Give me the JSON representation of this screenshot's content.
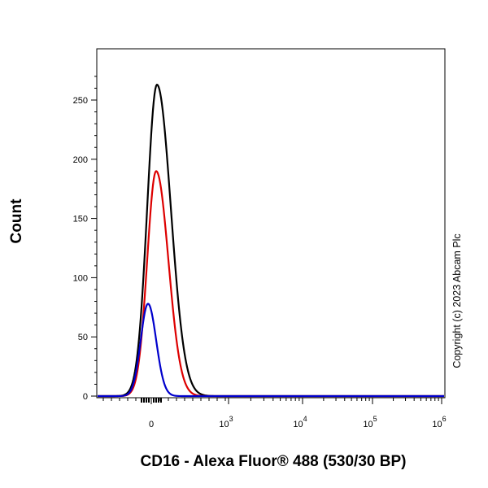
{
  "chart_data": {
    "type": "line",
    "xlabel": "CD16 - Alexa Fluor® 488 (530/30 BP)",
    "ylabel": "Count",
    "x_scale": "biexponential",
    "ylim": [
      0,
      275
    ],
    "yticks": [
      0,
      50,
      100,
      150,
      200,
      250
    ],
    "xticks": [
      {
        "label": "0"
      },
      {
        "label": "10",
        "exp": "3"
      },
      {
        "label": "10",
        "exp": "4"
      },
      {
        "label": "10",
        "exp": "5"
      },
      {
        "label": "10",
        "exp": "6"
      }
    ],
    "annotation": "Copyright (c) 2023 Abcam Plc",
    "series": [
      {
        "color": "#000000",
        "peak": 263
      },
      {
        "color": "#dd0000",
        "peak": 190
      },
      {
        "color": "#0000cc",
        "peak": 78
      }
    ]
  }
}
